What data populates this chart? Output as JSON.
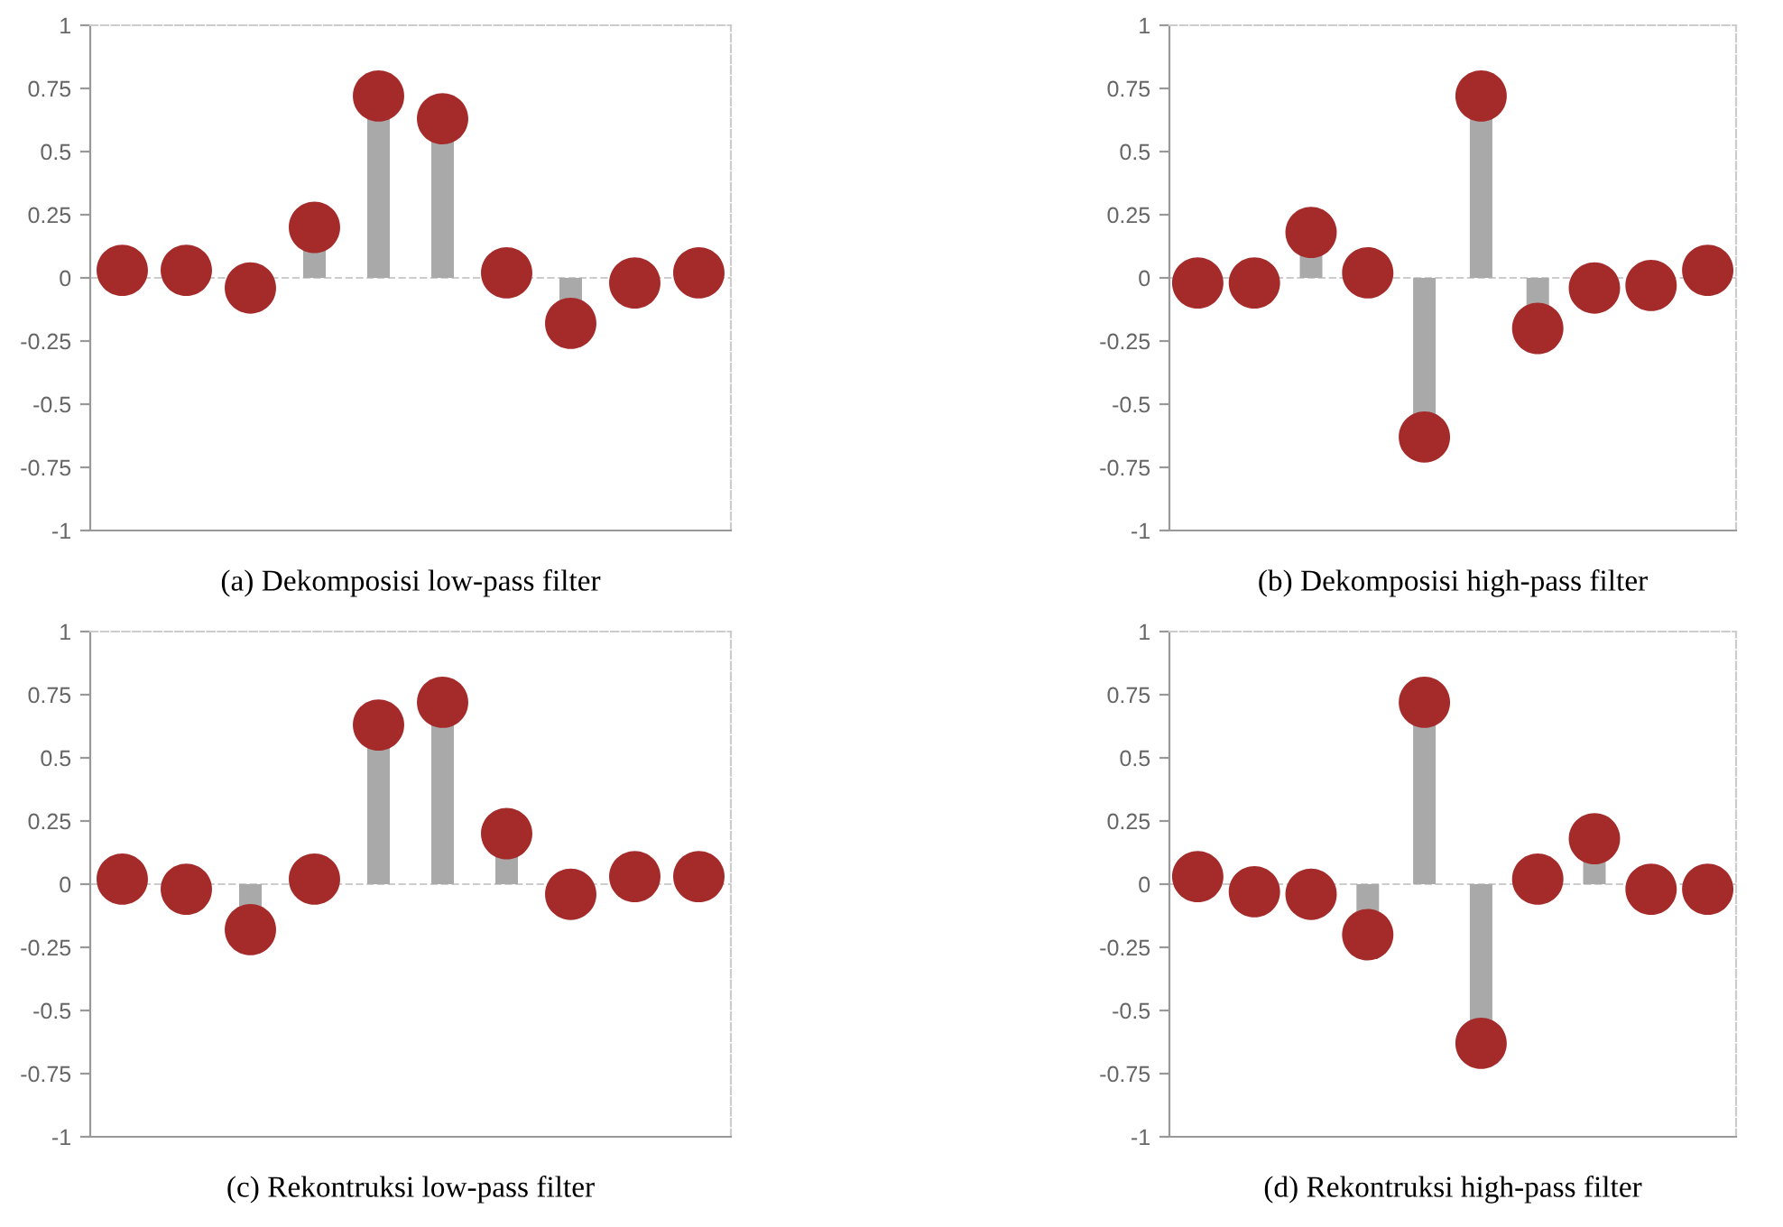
{
  "chart_data": [
    {
      "type": "lollipop",
      "xlabel": "(a) Dekomposisi low-pass filter",
      "categories": [
        null,
        null,
        null,
        null,
        null,
        null,
        null,
        null,
        null,
        null
      ],
      "values": [
        0.03,
        0.03,
        -0.04,
        0.2,
        0.72,
        0.63,
        0.02,
        -0.18,
        -0.02,
        0.02
      ],
      "color": "#a52a2a",
      "marker": "circle",
      "ylim": [
        -1,
        1
      ],
      "yticks": [
        -1,
        -0.75,
        -0.5,
        -0.25,
        0,
        0.25,
        0.5,
        0.75,
        1
      ],
      "ref_lines": [
        {
          "axis": "y",
          "value": 0,
          "line_style": "dashed",
          "color": "#cccccc"
        }
      ]
    },
    {
      "type": "lollipop",
      "xlabel": "(b) Dekomposisi high-pass filter",
      "categories": [
        null,
        null,
        null,
        null,
        null,
        null,
        null,
        null,
        null,
        null
      ],
      "values": [
        -0.02,
        -0.02,
        0.18,
        0.02,
        -0.63,
        0.72,
        -0.2,
        -0.04,
        -0.03,
        0.03
      ],
      "color": "#a52a2a",
      "marker": "circle",
      "ylim": [
        -1,
        1
      ],
      "yticks": [
        -1,
        -0.75,
        -0.5,
        -0.25,
        0,
        0.25,
        0.5,
        0.75,
        1
      ],
      "ref_lines": [
        {
          "axis": "y",
          "value": 0,
          "line_style": "dashed",
          "color": "#cccccc"
        }
      ]
    },
    {
      "type": "lollipop",
      "xlabel": "(c) Rekontruksi low-pass filter",
      "categories": [
        null,
        null,
        null,
        null,
        null,
        null,
        null,
        null,
        null,
        null
      ],
      "values": [
        0.02,
        -0.02,
        -0.18,
        0.02,
        0.63,
        0.72,
        0.2,
        -0.04,
        0.03,
        0.03
      ],
      "color": "#a52a2a",
      "marker": "circle",
      "ylim": [
        -1,
        1
      ],
      "yticks": [
        -1,
        -0.75,
        -0.5,
        -0.25,
        0,
        0.25,
        0.5,
        0.75,
        1
      ],
      "ref_lines": [
        {
          "axis": "y",
          "value": 0,
          "line_style": "dashed",
          "color": "#cccccc"
        }
      ]
    },
    {
      "type": "lollipop",
      "xlabel": "(d) Rekontruksi high-pass filter",
      "categories": [
        null,
        null,
        null,
        null,
        null,
        null,
        null,
        null,
        null,
        null
      ],
      "values": [
        0.03,
        -0.03,
        -0.04,
        -0.2,
        0.72,
        -0.63,
        0.02,
        0.18,
        -0.02,
        -0.02
      ],
      "color": "#a52a2a",
      "marker": "circle",
      "ylim": [
        -1,
        1
      ],
      "yticks": [
        -1,
        -0.75,
        -0.5,
        -0.25,
        0,
        0.25,
        0.5,
        0.75,
        1
      ],
      "ref_lines": [
        {
          "axis": "y",
          "value": 0,
          "line_style": "dashed",
          "color": "#cccccc"
        }
      ]
    }
  ]
}
